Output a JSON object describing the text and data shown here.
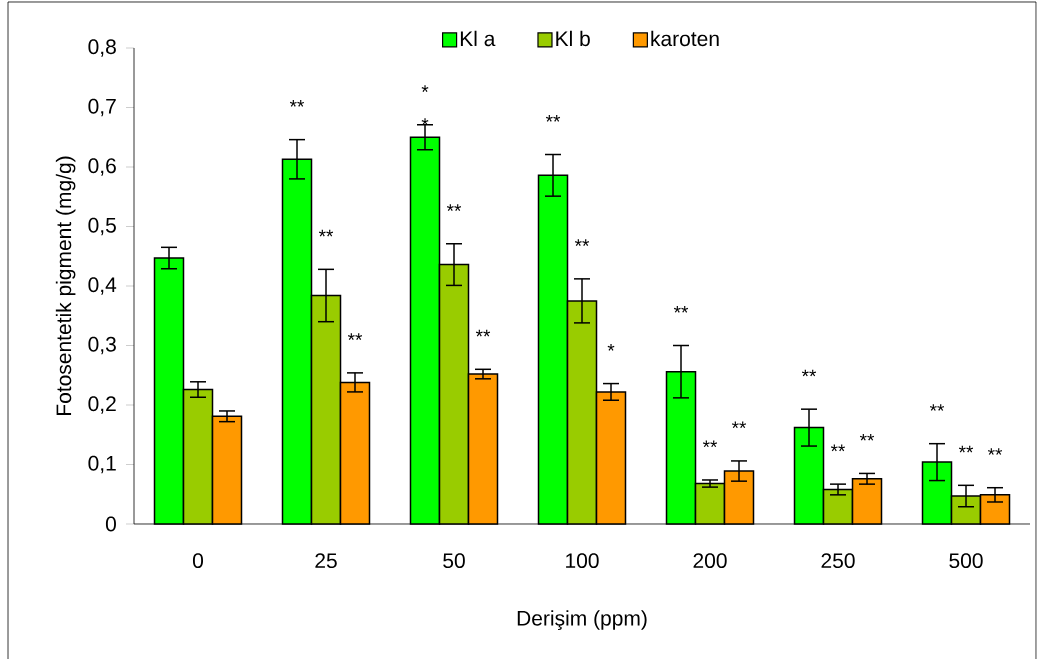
{
  "chart_data": {
    "type": "bar",
    "xlabel": "Derişim (ppm)",
    "ylabel": "Fotosentetik pigment (mg/g)",
    "categories": [
      "0",
      "25",
      "50",
      "100",
      "200",
      "250",
      "500"
    ],
    "series": [
      {
        "name": "Kl a",
        "color": "#00ff00",
        "values": [
          0.447,
          0.613,
          0.65,
          0.586,
          0.256,
          0.162,
          0.104
        ],
        "errors": [
          0.018,
          0.033,
          0.021,
          0.035,
          0.044,
          0.031,
          0.031
        ]
      },
      {
        "name": "Kl b",
        "color": "#99cc00",
        "values": [
          0.226,
          0.384,
          0.436,
          0.375,
          0.068,
          0.058,
          0.047
        ],
        "errors": [
          0.013,
          0.044,
          0.035,
          0.037,
          0.006,
          0.009,
          0.018
        ]
      },
      {
        "name": "karoten",
        "color": "#ff9900",
        "values": [
          0.181,
          0.238,
          0.252,
          0.222,
          0.089,
          0.076,
          0.049
        ],
        "errors": [
          0.009,
          0.016,
          0.008,
          0.014,
          0.017,
          0.009,
          0.012
        ]
      }
    ],
    "ylim": [
      0,
      0.8
    ],
    "yticks": [
      0,
      {
        "value": 0.1,
        "label": "0,1"
      },
      {
        "value": 0.2,
        "label": "0,2"
      },
      {
        "value": 0.3,
        "label": "0,3"
      },
      {
        "value": 0.4,
        "label": "0,4"
      },
      {
        "value": 0.5,
        "label": "0,5"
      },
      {
        "value": 0.6,
        "label": "0,6"
      },
      {
        "value": 0.7,
        "label": "0,7"
      },
      {
        "value": 0.8,
        "label": "0,8"
      }
    ],
    "legend": "top",
    "annotations": [
      "**",
      "**",
      "**",
      "*",
      "*",
      "**",
      "**",
      "**",
      "**",
      "*",
      "**",
      "**",
      "**",
      "**",
      "**",
      "**",
      "**",
      "**",
      "**"
    ]
  }
}
